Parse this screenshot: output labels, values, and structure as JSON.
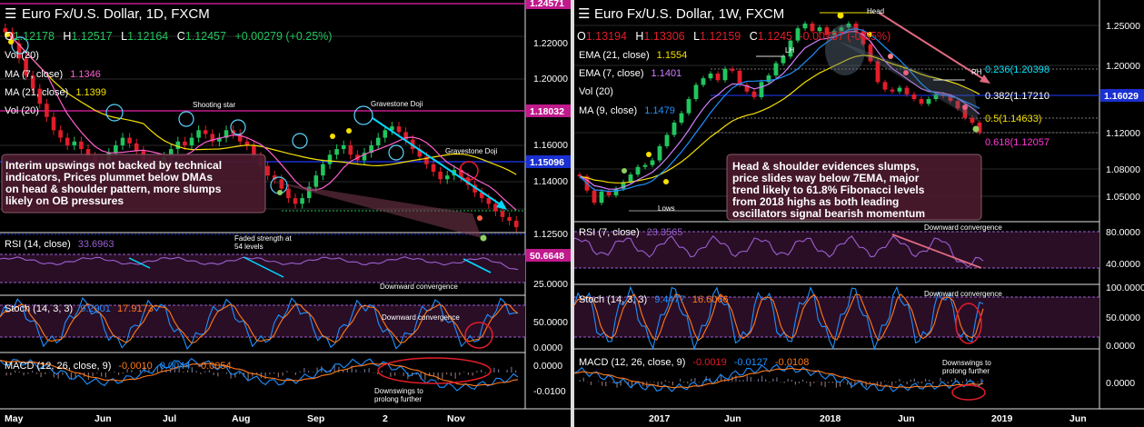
{
  "colors": {
    "bull": "#22c55e",
    "bear": "#e11d2a",
    "ma7": "#ff5fd0",
    "ma21": "#f5e000",
    "ema7": "#d080ff",
    "ema21": "#f5e000",
    "ma9": "#1e90ff",
    "rsi": "#9b5fd0",
    "stoch_k": "#1e90ff",
    "stoch_d": "#ff7a1a",
    "macd": "#1e90ff",
    "signal": "#ff7a1a",
    "arrow": "#00d8ff",
    "pane_bg": "#2a0e26",
    "annot_bg": "#4a1a2c"
  },
  "daily": {
    "title": "Euro Fx/U.S. Dollar, 1D, FXCM",
    "ohlc": [
      {
        "k": "O",
        "v": "1.12178"
      },
      {
        "k": "H",
        "v": "1.12517"
      },
      {
        "k": "L",
        "v": "1.12164"
      },
      {
        "k": "C",
        "v": "1.12457"
      }
    ],
    "change": "+0.00279 (+0.25%)",
    "vol": "Vol (20)",
    "ma7": {
      "label": "MA (7, close)",
      "value": "1.1346"
    },
    "ma21": {
      "label": "MA (21, close)",
      "value": "1.1399"
    },
    "vol2": "Vol (20)",
    "price_ticks": [
      "1.22000",
      "1.20000",
      "1.18000",
      "1.16000",
      "1.14000",
      "1.12500"
    ],
    "price_tags": [
      {
        "v": "1.24571",
        "color": "#c01a8c"
      },
      {
        "v": "1.18032",
        "color": "#c01a8c"
      },
      {
        "v": "1.15096",
        "color": "#1a30d0"
      }
    ],
    "annotations": {
      "shooting_star": "Shooting star",
      "gravestone1": "Gravestone Doji",
      "gravestone2": "Gravestone Doji"
    },
    "note": [
      "Interim upswings not backed by technical",
      "indicators, Prices plummet below DMAs",
      "on head & shoulder pattern, more slumps",
      "likely on OB pressures"
    ],
    "rsi": {
      "label": "RSI (14, close)",
      "value": "33.6963",
      "tag": "50.6648",
      "ticks": [
        "25.0000"
      ],
      "note": [
        "Faded strength at",
        "54 levels"
      ],
      "note2": "Downward convergence"
    },
    "stoch": {
      "label": "Stoch (14, 3, 3)",
      "k": "9.2901",
      "d": "17.9173",
      "ticks": [
        "50.0000",
        "0.0000"
      ],
      "note": "Downward convergence"
    },
    "macd": {
      "label": "MACD (12, 26, close, 9)",
      "v1": "-0.0010",
      "v2": "0.0044",
      "v3": "-0.0054",
      "ticks": [
        "0.0000",
        "-0.0100"
      ],
      "note": [
        "Downswings to",
        "prolong further"
      ]
    },
    "x_ticks": [
      "May",
      "Jun",
      "Jul",
      "Aug",
      "Sep",
      "2",
      "Nov"
    ]
  },
  "weekly": {
    "title": "Euro Fx/U.S. Dollar, 1W, FXCM",
    "ohlc": [
      {
        "k": "O",
        "v": "1.13194"
      },
      {
        "k": "H",
        "v": "1.13306"
      },
      {
        "k": "L",
        "v": "1.12159"
      },
      {
        "k": "C",
        "v": "1.1245"
      }
    ],
    "change": "-0.00737 (-0.65%)",
    "ema21": {
      "label": "EMA (21, close)",
      "value": "1.1554"
    },
    "ema7": {
      "label": "EMA (7, close)",
      "value": "1.1401"
    },
    "vol": "Vol (20)",
    "ma9": {
      "label": "MA (9, close)",
      "value": "1.1479"
    },
    "price_ticks": [
      "1.25000",
      "1.20000",
      "1.12000",
      "1.08000",
      "1.05000"
    ],
    "price_tag": "1.16029",
    "fib": [
      {
        "label": "0.236(1.20398",
        "color": "#00e5ff"
      },
      {
        "label": "0.382(1.17210",
        "color": "#fff"
      },
      {
        "label": "0.5(1.14633)",
        "color": "#f5e000"
      },
      {
        "label": "0.618(1.12057",
        "color": "#ff3ad6"
      }
    ],
    "annotations": {
      "head": "Head",
      "lh": "LH",
      "rh": "RH",
      "lows": "Lows"
    },
    "note": [
      "Head & shoulder evidences slumps,",
      "price slides way below 7EMA, major",
      "trend likely to 61.8% Fibonacci levels",
      "from 2018 highs as both leading",
      "oscillators signal bearish momentum"
    ],
    "rsi": {
      "label": "RSI (7, close)",
      "value": "23.3565",
      "ticks": [
        "80.0000",
        "40.0000"
      ],
      "note": "Downward convergence"
    },
    "stoch": {
      "label": "Stoch (14, 3, 3)",
      "k": "9.4477",
      "d": "16.6066",
      "ticks": [
        "100.0000",
        "50.0000",
        "0.0000"
      ],
      "note": "Downward convergence"
    },
    "macd": {
      "label": "MACD (12, 26, close, 9)",
      "v1": "-0.0019",
      "v2": "-0.0127",
      "v3": "-0.0108",
      "ticks": [
        "0.0000"
      ],
      "note": [
        "Downswings to",
        "prolong further"
      ]
    },
    "x_ticks": [
      "2017",
      "Jun",
      "2018",
      "Jun",
      "2019",
      "Jun"
    ]
  },
  "chart_data": [
    {
      "type": "candlestick",
      "title": "Euro Fx/U.S. Dollar, 1D, FXCM",
      "x_labels": [
        "May",
        "Jun",
        "Jul",
        "Aug",
        "Sep",
        "2",
        "Nov"
      ],
      "ylim": [
        1.115,
        1.245
      ],
      "close": [
        1.228,
        1.222,
        1.214,
        1.205,
        1.198,
        1.19,
        1.183,
        1.176,
        1.172,
        1.168,
        1.17,
        1.166,
        1.162,
        1.158,
        1.16,
        1.164,
        1.168,
        1.172,
        1.169,
        1.165,
        1.16,
        1.155,
        1.158,
        1.162,
        1.166,
        1.17,
        1.168,
        1.172,
        1.176,
        1.174,
        1.17,
        1.172,
        1.176,
        1.174,
        1.17,
        1.168,
        1.162,
        1.157,
        1.152,
        1.15,
        1.145,
        1.14,
        1.137,
        1.14,
        1.146,
        1.152,
        1.158,
        1.163,
        1.166,
        1.168,
        1.163,
        1.16,
        1.164,
        1.168,
        1.172,
        1.176,
        1.178,
        1.175,
        1.171,
        1.166,
        1.162,
        1.158,
        1.154,
        1.15,
        1.152,
        1.155,
        1.151,
        1.147,
        1.143,
        1.14,
        1.137,
        1.133,
        1.13,
        1.128,
        1.1246
      ]
    },
    {
      "type": "candlestick",
      "title": "Euro Fx/U.S. Dollar, 1W, FXCM",
      "x_labels": [
        "2017",
        "Jun",
        "2018",
        "Jun",
        "2019",
        "Jun"
      ],
      "ylim": [
        1.03,
        1.265
      ],
      "close": [
        1.078,
        1.063,
        1.05,
        1.062,
        1.058,
        1.065,
        1.072,
        1.08,
        1.088,
        1.09,
        1.095,
        1.11,
        1.122,
        1.135,
        1.145,
        1.16,
        1.175,
        1.182,
        1.187,
        1.18,
        1.192,
        1.19,
        1.175,
        1.168,
        1.162,
        1.178,
        1.185,
        1.198,
        1.205,
        1.222,
        1.235,
        1.24,
        1.232,
        1.236,
        1.228,
        1.232,
        1.236,
        1.24,
        1.232,
        1.218,
        1.2,
        1.178,
        1.17,
        1.168,
        1.172,
        1.165,
        1.16,
        1.155,
        1.16,
        1.165,
        1.163,
        1.158,
        1.15,
        1.14,
        1.135,
        1.1245
      ]
    }
  ]
}
